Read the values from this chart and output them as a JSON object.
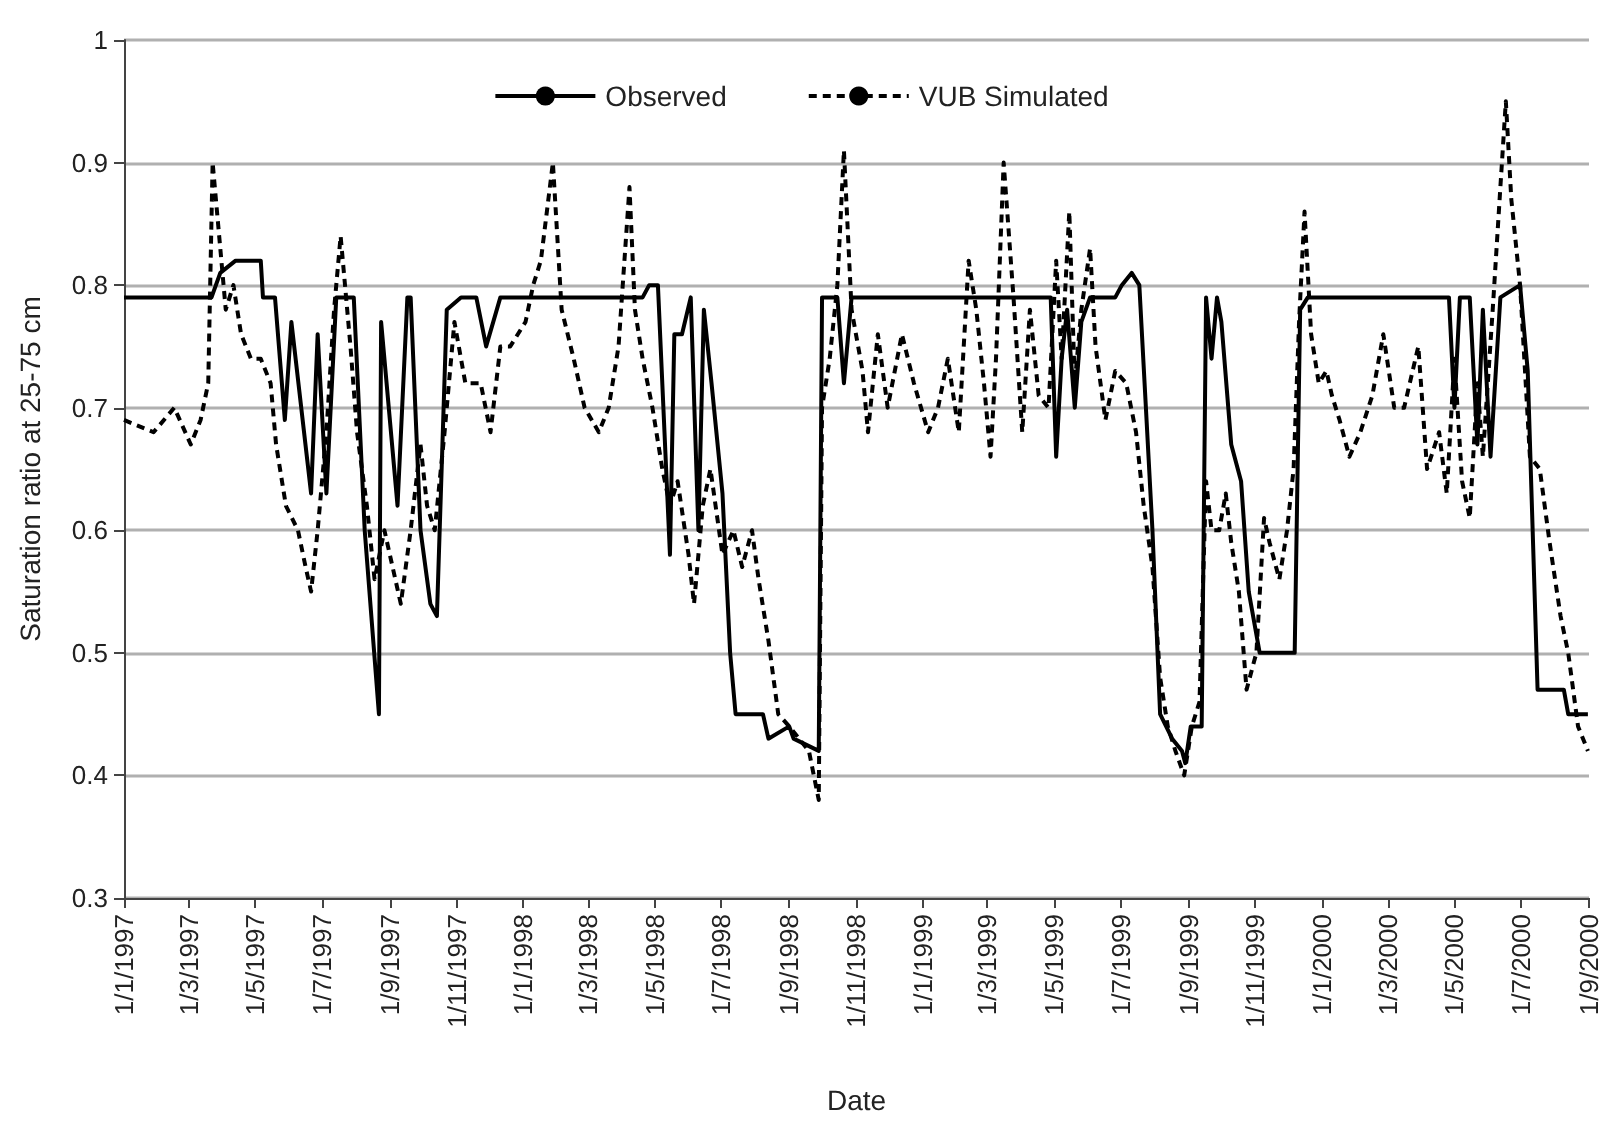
{
  "chart_data": {
    "type": "line",
    "xlabel": "Date",
    "ylabel": "Saturation ratio at 25-75 cm",
    "xlim": [
      "1997-01-01",
      "2000-09-01"
    ],
    "xticks": [
      {
        "value": "1997-01-01",
        "label": "1/1/1997"
      },
      {
        "value": "1997-03-01",
        "label": "1/3/1997"
      },
      {
        "value": "1997-05-01",
        "label": "1/5/1997"
      },
      {
        "value": "1997-07-01",
        "label": "1/7/1997"
      },
      {
        "value": "1997-09-01",
        "label": "1/9/1997"
      },
      {
        "value": "1997-11-01",
        "label": "1/11/1997"
      },
      {
        "value": "1998-01-01",
        "label": "1/1/1998"
      },
      {
        "value": "1998-03-01",
        "label": "1/3/1998"
      },
      {
        "value": "1998-05-01",
        "label": "1/5/1998"
      },
      {
        "value": "1998-07-01",
        "label": "1/7/1998"
      },
      {
        "value": "1998-09-01",
        "label": "1/9/1998"
      },
      {
        "value": "1998-11-01",
        "label": "1/11/1998"
      },
      {
        "value": "1999-01-01",
        "label": "1/1/1999"
      },
      {
        "value": "1999-03-01",
        "label": "1/3/1999"
      },
      {
        "value": "1999-05-01",
        "label": "1/5/1999"
      },
      {
        "value": "1999-07-01",
        "label": "1/7/1999"
      },
      {
        "value": "1999-09-01",
        "label": "1/9/1999"
      },
      {
        "value": "1999-11-01",
        "label": "1/11/1999"
      },
      {
        "value": "2000-01-01",
        "label": "1/1/2000"
      },
      {
        "value": "2000-03-01",
        "label": "1/3/2000"
      },
      {
        "value": "2000-05-01",
        "label": "1/5/2000"
      },
      {
        "value": "2000-07-01",
        "label": "1/7/2000"
      },
      {
        "value": "2000-09-01",
        "label": "1/9/2000"
      }
    ],
    "ylim": [
      0.3,
      1
    ],
    "yticks": [
      0.3,
      0.4,
      0.5,
      0.6,
      0.7,
      0.8,
      0.9,
      1
    ],
    "grid": "y",
    "legend": "top",
    "marker": "none",
    "series": [
      {
        "name": "Observed",
        "color": "#000000",
        "line_style": "solid",
        "x": [
          "1997-01-01",
          "1997-03-22",
          "1997-03-30",
          "1997-04-13",
          "1997-05-06",
          "1997-05-08",
          "1997-05-19",
          "1997-05-28",
          "1997-06-03",
          "1997-06-21",
          "1997-06-27",
          "1997-07-05",
          "1997-07-14",
          "1997-07-30",
          "1997-08-09",
          "1997-08-22",
          "1997-08-24",
          "1997-09-08",
          "1997-09-17",
          "1997-09-20",
          "1997-09-29",
          "1997-10-08",
          "1997-10-14",
          "1997-10-23",
          "1997-11-05",
          "1997-11-19",
          "1997-11-28",
          "1997-12-11",
          "1998-04-20",
          "1998-04-26",
          "1998-05-04",
          "1998-05-15",
          "1998-05-19",
          "1998-05-26",
          "1998-06-03",
          "1998-06-10",
          "1998-06-15",
          "1998-06-22",
          "1998-07-02",
          "1998-07-09",
          "1998-07-14",
          "1998-08-08",
          "1998-08-13",
          "1998-09-01",
          "1998-09-05",
          "1998-09-28",
          "1998-10-01",
          "1998-10-15",
          "1998-10-21",
          "1998-10-28",
          "1999-04-28",
          "1999-05-03",
          "1999-05-08",
          "1999-05-13",
          "1999-05-20",
          "1999-05-26",
          "1999-06-03",
          "1999-06-26",
          "1999-07-02",
          "1999-07-11",
          "1999-07-18",
          "1999-07-24",
          "1999-07-30",
          "1999-08-06",
          "1999-08-17",
          "1999-08-26",
          "1999-08-29",
          "1999-09-03",
          "1999-09-13",
          "1999-09-17",
          "1999-09-22",
          "1999-09-27",
          "1999-10-01",
          "1999-10-10",
          "1999-10-19",
          "1999-10-26",
          "1999-11-05",
          "1999-12-07",
          "1999-12-12",
          "1999-12-19",
          "2000-04-26",
          "2000-05-01",
          "2000-05-06",
          "2000-05-15",
          "2000-05-22",
          "2000-05-27",
          "2000-06-03",
          "2000-06-12",
          "2000-06-30",
          "2000-07-07",
          "2000-07-16",
          "2000-08-09",
          "2000-08-13",
          "2000-08-31"
        ],
        "values": [
          0.79,
          0.79,
          0.81,
          0.82,
          0.82,
          0.79,
          0.79,
          0.69,
          0.77,
          0.63,
          0.76,
          0.63,
          0.79,
          0.79,
          0.6,
          0.45,
          0.77,
          0.62,
          0.79,
          0.79,
          0.6,
          0.54,
          0.53,
          0.78,
          0.79,
          0.79,
          0.75,
          0.79,
          0.79,
          0.8,
          0.8,
          0.58,
          0.76,
          0.76,
          0.79,
          0.6,
          0.78,
          0.72,
          0.63,
          0.5,
          0.45,
          0.45,
          0.43,
          0.44,
          0.43,
          0.42,
          0.79,
          0.79,
          0.72,
          0.79,
          0.79,
          0.66,
          0.74,
          0.78,
          0.7,
          0.77,
          0.79,
          0.79,
          0.8,
          0.81,
          0.8,
          0.7,
          0.6,
          0.45,
          0.43,
          0.42,
          0.41,
          0.44,
          0.44,
          0.79,
          0.74,
          0.79,
          0.77,
          0.67,
          0.64,
          0.55,
          0.5,
          0.5,
          0.78,
          0.79,
          0.79,
          0.7,
          0.79,
          0.79,
          0.67,
          0.78,
          0.66,
          0.79,
          0.8,
          0.73,
          0.47,
          0.47,
          0.45,
          0.45
        ]
      },
      {
        "name": "VUB Simulated",
        "color": "#000000",
        "line_style": "dashed",
        "x": [
          "1997-01-01",
          "1997-01-28",
          "1997-02-16",
          "1997-03-03",
          "1997-03-12",
          "1997-03-19",
          "1997-03-23",
          "1997-03-28",
          "1997-04-04",
          "1997-04-11",
          "1997-04-18",
          "1997-04-27",
          "1997-05-06",
          "1997-05-15",
          "1997-05-20",
          "1997-05-29",
          "1997-06-09",
          "1997-06-16",
          "1997-06-21",
          "1997-06-27",
          "1997-07-05",
          "1997-07-12",
          "1997-07-18",
          "1997-07-27",
          "1997-08-02",
          "1997-08-11",
          "1997-08-18",
          "1997-08-27",
          "1997-09-06",
          "1997-09-11",
          "1997-09-20",
          "1997-09-29",
          "1997-10-05",
          "1997-10-12",
          "1997-10-21",
          "1997-10-30",
          "1997-11-09",
          "1997-11-23",
          "1997-12-02",
          "1997-12-11",
          "1997-12-20",
          "1998-01-03",
          "1998-01-10",
          "1998-01-17",
          "1998-01-28",
          "1998-02-05",
          "1998-02-16",
          "1998-02-26",
          "1998-03-11",
          "1998-03-20",
          "1998-03-29",
          "1998-04-08",
          "1998-04-13",
          "1998-04-20",
          "1998-04-29",
          "1998-05-08",
          "1998-05-15",
          "1998-05-22",
          "1998-06-01",
          "1998-06-06",
          "1998-06-14",
          "1998-06-21",
          "1998-07-02",
          "1998-07-12",
          "1998-07-20",
          "1998-07-29",
          "1998-08-04",
          "1998-08-13",
          "1998-08-22",
          "1998-09-01",
          "1998-09-10",
          "1998-09-19",
          "1998-09-28",
          "1998-10-01",
          "1998-10-08",
          "1998-10-15",
          "1998-10-21",
          "1998-10-28",
          "1998-11-07",
          "1998-11-12",
          "1998-11-21",
          "1998-11-30",
          "1998-12-13",
          "1998-12-24",
          "1999-01-06",
          "1999-01-15",
          "1999-01-24",
          "1999-02-03",
          "1999-02-12",
          "1999-02-19",
          "1999-02-26",
          "1999-03-04",
          "1999-03-09",
          "1999-03-16",
          "1999-03-25",
          "1999-04-02",
          "1999-04-09",
          "1999-04-17",
          "1999-04-26",
          "1999-05-03",
          "1999-05-08",
          "1999-05-15",
          "1999-05-20",
          "1999-05-26",
          "1999-06-03",
          "1999-06-08",
          "1999-06-17",
          "1999-06-26",
          "1999-07-06",
          "1999-07-15",
          "1999-07-22",
          "1999-07-30",
          "1999-08-06",
          "1999-08-13",
          "1999-08-20",
          "1999-08-28",
          "1999-09-04",
          "1999-09-11",
          "1999-09-17",
          "1999-09-22",
          "1999-09-29",
          "1999-10-05",
          "1999-10-10",
          "1999-10-17",
          "1999-10-24",
          "1999-11-02",
          "1999-11-09",
          "1999-11-14",
          "1999-11-23",
          "1999-11-30",
          "1999-12-06",
          "1999-12-11",
          "1999-12-16",
          "1999-12-22",
          "1999-12-29",
          "2000-01-05",
          "2000-01-10",
          "2000-01-17",
          "2000-01-26",
          "2000-02-05",
          "2000-02-16",
          "2000-02-26",
          "2000-03-07",
          "2000-03-16",
          "2000-03-29",
          "2000-04-06",
          "2000-04-17",
          "2000-04-24",
          "2000-05-01",
          "2000-05-08",
          "2000-05-15",
          "2000-05-22",
          "2000-05-27",
          "2000-06-05",
          "2000-06-12",
          "2000-06-17",
          "2000-06-22",
          "2000-06-30",
          "2000-07-09",
          "2000-07-18",
          "2000-07-27",
          "2000-08-06",
          "2000-08-13",
          "2000-08-22",
          "2000-08-31"
        ],
        "values": [
          0.69,
          0.68,
          0.7,
          0.67,
          0.69,
          0.72,
          0.9,
          0.85,
          0.78,
          0.8,
          0.76,
          0.74,
          0.74,
          0.72,
          0.67,
          0.62,
          0.6,
          0.57,
          0.55,
          0.6,
          0.68,
          0.78,
          0.84,
          0.75,
          0.68,
          0.62,
          0.56,
          0.6,
          0.56,
          0.54,
          0.6,
          0.67,
          0.62,
          0.6,
          0.68,
          0.77,
          0.72,
          0.72,
          0.68,
          0.75,
          0.75,
          0.77,
          0.8,
          0.82,
          0.9,
          0.78,
          0.74,
          0.7,
          0.68,
          0.7,
          0.75,
          0.88,
          0.78,
          0.74,
          0.7,
          0.65,
          0.62,
          0.64,
          0.58,
          0.54,
          0.62,
          0.65,
          0.58,
          0.6,
          0.57,
          0.6,
          0.56,
          0.51,
          0.45,
          0.44,
          0.43,
          0.42,
          0.38,
          0.7,
          0.74,
          0.8,
          0.91,
          0.78,
          0.73,
          0.68,
          0.76,
          0.7,
          0.76,
          0.72,
          0.68,
          0.7,
          0.74,
          0.68,
          0.82,
          0.78,
          0.72,
          0.66,
          0.74,
          0.9,
          0.79,
          0.68,
          0.78,
          0.71,
          0.7,
          0.82,
          0.74,
          0.86,
          0.72,
          0.78,
          0.83,
          0.75,
          0.69,
          0.73,
          0.72,
          0.68,
          0.62,
          0.57,
          0.48,
          0.44,
          0.42,
          0.4,
          0.44,
          0.46,
          0.64,
          0.6,
          0.6,
          0.63,
          0.59,
          0.55,
          0.47,
          0.5,
          0.61,
          0.59,
          0.56,
          0.6,
          0.65,
          0.77,
          0.86,
          0.76,
          0.72,
          0.73,
          0.71,
          0.69,
          0.66,
          0.68,
          0.71,
          0.76,
          0.7,
          0.7,
          0.75,
          0.65,
          0.68,
          0.63,
          0.74,
          0.64,
          0.61,
          0.72,
          0.66,
          0.78,
          0.88,
          0.95,
          0.87,
          0.8,
          0.66,
          0.65,
          0.59,
          0.53,
          0.5,
          0.44,
          0.42
        ]
      }
    ]
  }
}
